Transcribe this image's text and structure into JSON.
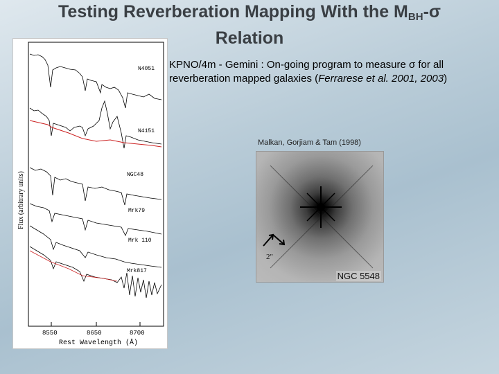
{
  "slide": {
    "title_prefix": "Testing Reverberation Mapping With the M",
    "title_sub": "BH",
    "title_suffix": "-σ",
    "title_line2": "Relation"
  },
  "description": {
    "lead": "KPNO/4m - Gemini : On-going program to measure σ for all reverberation mapped galaxies (",
    "cite": "Ferrarese et al. 2001, 2003",
    "close": ")"
  },
  "spectra_figure": {
    "ylabel": "Flux (arbitrary units)",
    "xlabel": "Rest Wavelength (Å)",
    "ticks": [
      "8550",
      "8650",
      "8700"
    ],
    "labels": [
      "N4051",
      "N4151",
      "NGC48",
      "Mrk79",
      "Mrk 110",
      "Mrk817"
    ]
  },
  "image_figure": {
    "citation": "Malkan, Gorjiam & Tam (1998)",
    "label": "NGC 5548",
    "scale": "2\""
  },
  "colors": {
    "title": "#3a3f44",
    "model_fit": "#cc2222"
  }
}
